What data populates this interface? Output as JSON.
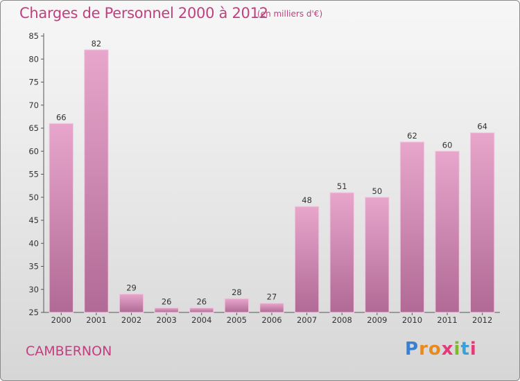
{
  "header": {
    "title": "Charges de Personnel 2000 à 2012",
    "subtitle": "(en milliers d'€)"
  },
  "footer": {
    "commune": "CAMBERNON",
    "logo": "Proxiti"
  },
  "colors": {
    "title": "#c0407f",
    "bar_top": "#e8a6cc",
    "bar_bottom": "#b06a95",
    "logo_letters": [
      "#3a7fd0",
      "#e98a1d",
      "#e98a1d",
      "#e23a7a",
      "#7fb82a",
      "#3aa0d8",
      "#e23a7a"
    ]
  },
  "chart_data": {
    "type": "bar",
    "title": "Charges de Personnel 2000 à 2012",
    "subtitle": "(en milliers d'€)",
    "categories": [
      "2000",
      "2001",
      "2002",
      "2003",
      "2004",
      "2005",
      "2006",
      "2007",
      "2008",
      "2009",
      "2010",
      "2011",
      "2012"
    ],
    "values": [
      66,
      82,
      29,
      26,
      26,
      28,
      27,
      48,
      51,
      50,
      62,
      60,
      64
    ],
    "ylim": [
      25,
      85
    ],
    "yticks": [
      25,
      30,
      35,
      40,
      45,
      50,
      55,
      60,
      65,
      70,
      75,
      80,
      85
    ],
    "grid": false,
    "legend": "none"
  }
}
